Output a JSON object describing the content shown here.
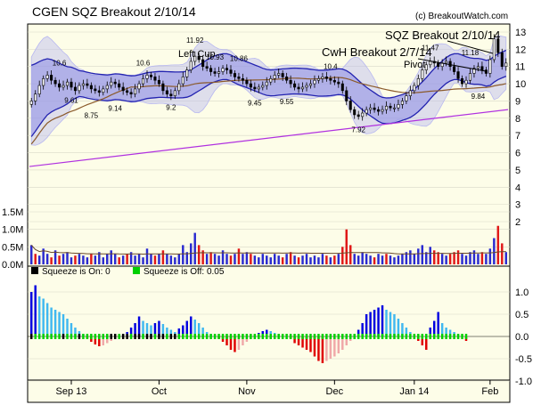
{
  "title": "CGEN SQZ Breakout 2/10/14",
  "credit": "(c) BreakoutWatch.com",
  "annotations": {
    "sqz_breakout": "SQZ Breakout 2/10/14",
    "cwh_breakout": "CwH Breakout 2/7/14",
    "pivot": "Pivot",
    "left_cup": "Left Cup"
  },
  "colors": {
    "bg": "#fdfde8",
    "band_fill": "#b8b8f0",
    "band_line": "#2323b0",
    "ma_brown": "#8b5a2b",
    "trend_purple": "#b030e0",
    "up_bar": "#2a2ad0",
    "down_bar": "#e01818",
    "mom_pos_strong": "#0000e0",
    "mom_pos_weak": "#40b8f0",
    "mom_neg_strong": "#e00000",
    "mom_neg_weak": "#f0a8a8",
    "sqz_on": "#000000",
    "sqz_off": "#00d000"
  },
  "chart_data": [
    {
      "type": "candlestick",
      "panel": "price",
      "x_labels": [
        "Sep 13",
        "Oct",
        "Nov",
        "Dec",
        "Jan 14",
        "Feb"
      ],
      "y_ticks": [
        2,
        3,
        4,
        5,
        6,
        7,
        8,
        9,
        10,
        11,
        12,
        13
      ],
      "ylim": [
        2,
        13
      ],
      "price_labels": [
        {
          "label": "10.6",
          "value": 10.6
        },
        {
          "label": "9.61",
          "value": 9.61
        },
        {
          "label": "8.75",
          "value": 8.75
        },
        {
          "label": "9.14",
          "value": 9.14
        },
        {
          "label": "10.6",
          "value": 10.6
        },
        {
          "label": "9.2",
          "value": 9.2
        },
        {
          "label": "11.92",
          "value": 11.92
        },
        {
          "label": "10.93",
          "value": 10.93
        },
        {
          "label": "10.86",
          "value": 10.86
        },
        {
          "label": "9.45",
          "value": 9.45
        },
        {
          "label": "9.55",
          "value": 9.55
        },
        {
          "label": "10.4",
          "value": 10.4
        },
        {
          "label": "7.92",
          "value": 7.92
        },
        {
          "label": "11.47",
          "value": 11.47
        },
        {
          "label": "11.18",
          "value": 11.18
        },
        {
          "label": "9.84",
          "value": 9.84
        }
      ],
      "closes": [
        9.0,
        9.4,
        9.9,
        10.3,
        10.5,
        10.2,
        10.0,
        9.8,
        9.9,
        10.1,
        9.8,
        9.6,
        9.9,
        10.0,
        9.9,
        9.7,
        9.6,
        9.5,
        9.7,
        9.9,
        10.1,
        10.0,
        9.8,
        9.6,
        9.5,
        9.4,
        9.7,
        10.0,
        10.3,
        10.5,
        10.4,
        10.2,
        10.0,
        9.6,
        9.4,
        9.3,
        9.6,
        10.0,
        10.4,
        10.8,
        11.3,
        11.6,
        11.4,
        11.0,
        10.9,
        10.7,
        10.6,
        10.7,
        10.9,
        10.8,
        10.6,
        10.4,
        10.3,
        10.2,
        10.0,
        9.8,
        9.7,
        9.8,
        9.9,
        10.1,
        10.3,
        10.5,
        10.6,
        10.4,
        10.2,
        10.0,
        9.8,
        9.7,
        9.8,
        9.9,
        10.0,
        10.2,
        10.3,
        10.4,
        10.3,
        10.2,
        10.1,
        10.0,
        9.6,
        9.0,
        8.5,
        8.2,
        8.1,
        8.3,
        8.5,
        8.6,
        8.5,
        8.4,
        8.5,
        8.7,
        8.6,
        8.6,
        8.8,
        9.0,
        9.3,
        9.6,
        9.9,
        10.3,
        10.8,
        11.1,
        11.3,
        11.2,
        11.0,
        11.2,
        11.3,
        11.0,
        10.7,
        10.3,
        10.0,
        10.2,
        10.6,
        10.9,
        11.0,
        10.8,
        10.6,
        11.4,
        12.6,
        11.8,
        11.0,
        11.2
      ]
    },
    {
      "type": "bar",
      "panel": "volume",
      "y_ticks": [
        "1.5M",
        "1.0M",
        "0.5M",
        "0.0M"
      ],
      "ylim": [
        0,
        1.5
      ],
      "values": [
        0.55,
        0.3,
        0.25,
        0.45,
        0.3,
        0.2,
        0.4,
        0.25,
        0.3,
        0.35,
        0.2,
        0.25,
        0.3,
        0.25,
        0.2,
        0.3,
        0.25,
        0.35,
        0.2,
        0.3,
        0.4,
        0.3,
        0.2,
        0.25,
        0.3,
        0.35,
        0.25,
        0.3,
        0.2,
        0.45,
        0.3,
        0.25,
        0.3,
        0.4,
        0.3,
        0.25,
        0.2,
        0.3,
        0.55,
        0.35,
        0.6,
        0.9,
        0.55,
        0.4,
        0.3,
        0.35,
        0.3,
        0.25,
        0.4,
        0.3,
        0.25,
        0.3,
        0.45,
        0.3,
        0.35,
        0.3,
        0.25,
        0.2,
        0.3,
        0.25,
        0.2,
        0.3,
        0.25,
        0.2,
        0.3,
        0.35,
        0.25,
        0.2,
        0.25,
        0.3,
        0.2,
        0.25,
        0.2,
        0.3,
        0.25,
        0.2,
        0.25,
        0.3,
        0.5,
        1.0,
        0.55,
        0.3,
        0.25,
        0.35,
        0.3,
        0.25,
        0.2,
        0.3,
        0.25,
        0.3,
        0.25,
        0.2,
        0.25,
        0.3,
        0.35,
        0.4,
        0.3,
        0.45,
        0.55,
        0.35,
        0.5,
        0.4,
        0.35,
        0.3,
        0.25,
        0.3,
        0.35,
        0.4,
        0.3,
        0.25,
        0.35,
        0.4,
        0.3,
        0.35,
        0.3,
        0.45,
        0.75,
        1.1,
        0.6,
        0.35
      ],
      "down_days": [
        1,
        5,
        7,
        11,
        15,
        22,
        24,
        31,
        33,
        42,
        43,
        45,
        50,
        52,
        55,
        63,
        65,
        67,
        74,
        76,
        78,
        79,
        80,
        86,
        89,
        101,
        102,
        105,
        106,
        107,
        113,
        117,
        118
      ]
    },
    {
      "type": "bar",
      "panel": "momentum",
      "legend": [
        {
          "label": "Squeeze is On: 0",
          "color_key": "sqz_on"
        },
        {
          "label": "Squeeze is Off: 0.05",
          "color_key": "sqz_off"
        }
      ],
      "y_ticks": [
        "1.0",
        "0.5",
        "0.0",
        "-0.5",
        "-1.0"
      ],
      "ylim": [
        -1.0,
        1.3
      ],
      "values": [
        1.0,
        1.15,
        0.9,
        0.85,
        0.75,
        0.65,
        0.6,
        0.55,
        0.5,
        0.4,
        0.3,
        0.2,
        0.12,
        0.05,
        -0.05,
        -0.12,
        -0.18,
        -0.22,
        -0.2,
        -0.15,
        -0.1,
        -0.05,
        0.0,
        0.05,
        0.1,
        0.2,
        0.3,
        0.45,
        0.35,
        0.3,
        0.25,
        0.3,
        0.35,
        0.28,
        0.2,
        0.15,
        0.1,
        0.18,
        0.25,
        0.35,
        0.45,
        0.38,
        0.3,
        0.2,
        0.1,
        0.05,
        0.0,
        -0.05,
        -0.12,
        -0.2,
        -0.3,
        -0.35,
        -0.3,
        -0.2,
        -0.12,
        -0.05,
        0.02,
        0.08,
        0.12,
        0.15,
        0.12,
        0.08,
        0.05,
        0.02,
        0.0,
        -0.05,
        -0.15,
        -0.2,
        -0.25,
        -0.3,
        -0.35,
        -0.45,
        -0.55,
        -0.6,
        -0.55,
        -0.5,
        -0.45,
        -0.38,
        -0.3,
        -0.2,
        -0.1,
        0.0,
        0.15,
        0.3,
        0.5,
        0.55,
        0.6,
        0.65,
        0.7,
        0.6,
        0.55,
        0.5,
        0.4,
        0.3,
        0.2,
        0.1,
        0.0,
        -0.1,
        -0.2,
        -0.3,
        0.2,
        0.35,
        0.55,
        0.3,
        0.2,
        0.15,
        0.1,
        0.05,
        0.0,
        -0.1
      ],
      "squeeze_on_days": [
        0,
        1,
        2,
        3,
        4,
        5,
        6,
        7,
        8,
        9,
        10,
        11,
        12,
        13,
        14,
        15,
        16,
        17,
        18,
        19,
        20,
        21,
        22,
        23,
        24,
        25,
        26,
        27,
        28,
        29,
        30,
        31,
        32,
        33,
        34,
        35,
        36,
        37
      ]
    }
  ]
}
